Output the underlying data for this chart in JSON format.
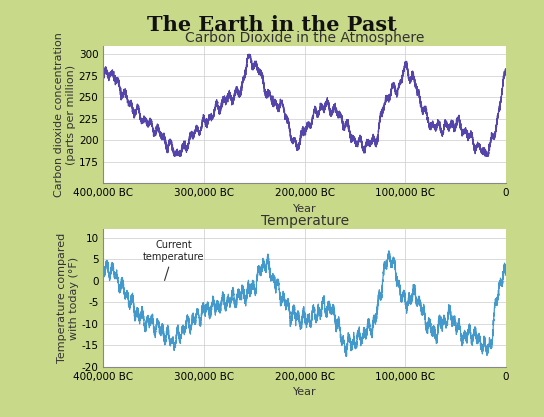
{
  "title": "The Earth in the Past",
  "co2_title": "Carbon Dioxide in the Atmosphere",
  "temp_title": "Temperature",
  "co2_ylabel": "Carbon dioxide concentration\n(parts per million)",
  "temp_ylabel": "Temperature compared\nwith today (°F)",
  "xlabel": "Year",
  "x_tick_labels": [
    "400,000 BC",
    "300,000 BC",
    "200,000 BC",
    "100,000 BC",
    "0"
  ],
  "x_tick_positions": [
    400000,
    300000,
    200000,
    100000,
    0
  ],
  "co2_ylim": [
    150,
    310
  ],
  "co2_yticks": [
    175,
    200,
    225,
    250,
    275,
    300
  ],
  "temp_ylim": [
    -20,
    12
  ],
  "temp_yticks": [
    -20,
    -15,
    -10,
    -5,
    0,
    5,
    10
  ],
  "co2_color": "#5544aa",
  "temp_color": "#4499cc",
  "bg_color": "#c8d98a",
  "plot_bg": "#ffffff",
  "grid_color": "#cccccc",
  "title_fontsize": 15,
  "subtitle_fontsize": 10,
  "label_fontsize": 8,
  "tick_fontsize": 7.5
}
